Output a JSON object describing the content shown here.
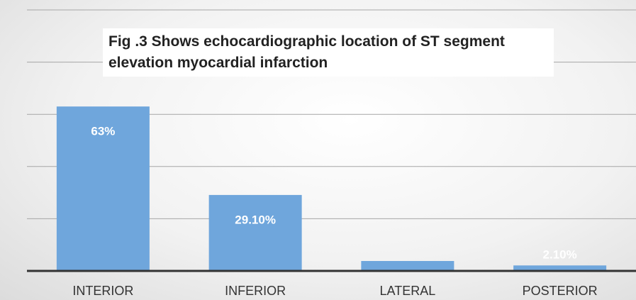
{
  "chart_data": {
    "type": "bar",
    "title": "Fig .3  Shows  echocardiographic location of  ST segment elevation myocardial infarction",
    "categories": [
      "INTERIOR",
      "INFERIOR",
      "LATERAL",
      "POSTERIOR"
    ],
    "values": [
      63,
      29.1,
      3.8,
      2.1
    ],
    "value_labels": [
      "63%",
      "29.10%",
      null,
      "2.10%"
    ],
    "color": "#6fa6dc",
    "ylim": [
      0,
      100
    ],
    "yticks": [
      20,
      40,
      60,
      80,
      100
    ],
    "grid": true
  }
}
